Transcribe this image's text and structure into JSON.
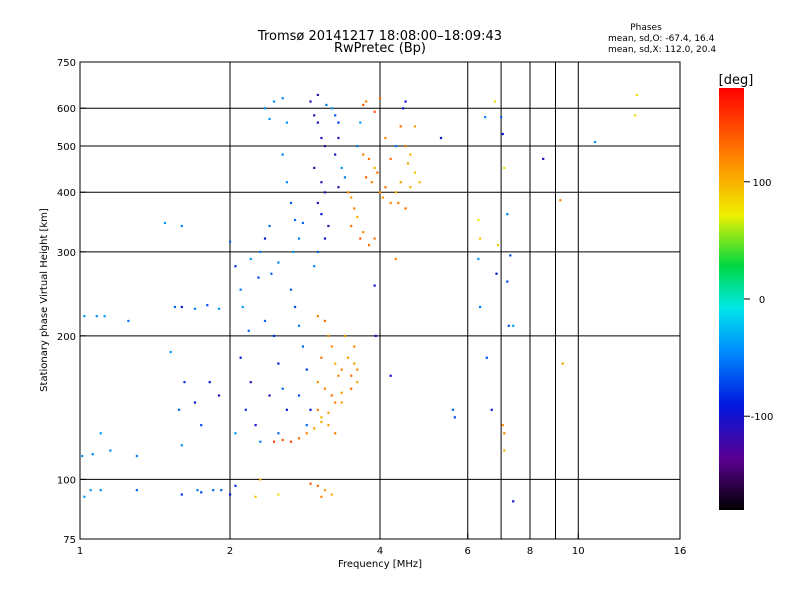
{
  "chart_data": {
    "type": "scatter",
    "title": "Tromsø 20141217 18:08:00–18:09:43",
    "subtitle": "RwPretec (Bp)",
    "xlabel": "Frequency [MHz]",
    "ylabel": "Stationary phase Virtual Height [km]",
    "x_scale": "log",
    "y_scale": "log",
    "xlim": [
      1,
      16
    ],
    "ylim": [
      75,
      750
    ],
    "x_ticks": [
      "1",
      "2",
      "4",
      "6",
      "8",
      "10",
      "16"
    ],
    "y_ticks": [
      "75",
      "100",
      "200",
      "300",
      "400",
      "500",
      "600",
      "750"
    ],
    "x_gridlines": [
      2,
      4,
      6,
      7,
      8,
      9,
      10
    ],
    "y_gridlines": [
      100,
      200,
      300,
      400,
      500,
      600
    ],
    "colorbar": {
      "label": "[deg]",
      "ticks": [
        "100",
        "0",
        "-100"
      ],
      "range": [
        -180,
        180
      ]
    },
    "info": {
      "heading": "Phases",
      "line_o": "mean, sd,O: -67.4, 16.4",
      "line_x": "mean, sd,X: 112.0, 20.4"
    },
    "series": [
      {
        "points_freq_height_phase": [
          [
            1.02,
            220,
            -40
          ],
          [
            1.08,
            220,
            -45
          ],
          [
            1.12,
            220,
            -38
          ],
          [
            1.25,
            215,
            -55
          ],
          [
            1.01,
            112,
            -40
          ],
          [
            1.06,
            113,
            -50
          ],
          [
            1.15,
            115,
            -45
          ],
          [
            1.3,
            112,
            -50
          ],
          [
            1.1,
            125,
            -40
          ],
          [
            1.48,
            345,
            -40
          ],
          [
            1.6,
            340,
            -50
          ],
          [
            1.55,
            230,
            -60
          ],
          [
            1.6,
            230,
            -90
          ],
          [
            1.7,
            228,
            -50
          ],
          [
            1.8,
            232,
            -70
          ],
          [
            1.9,
            228,
            -40
          ],
          [
            1.52,
            185,
            -40
          ],
          [
            1.62,
            160,
            -80
          ],
          [
            1.7,
            145,
            -90
          ],
          [
            1.82,
            160,
            -100
          ],
          [
            1.9,
            150,
            -110
          ],
          [
            1.58,
            140,
            -60
          ],
          [
            1.75,
            130,
            -70
          ],
          [
            1.6,
            118,
            -40
          ],
          [
            2.0,
            315,
            -60
          ],
          [
            2.05,
            280,
            -80
          ],
          [
            2.1,
            250,
            -50
          ],
          [
            2.12,
            230,
            -40
          ],
          [
            2.18,
            205,
            -60
          ],
          [
            2.1,
            180,
            -90
          ],
          [
            2.2,
            160,
            -110
          ],
          [
            2.15,
            140,
            -80
          ],
          [
            2.05,
            125,
            -40
          ],
          [
            2.25,
            130,
            -100
          ],
          [
            2.3,
            300,
            -50
          ],
          [
            2.35,
            320,
            -90
          ],
          [
            2.4,
            340,
            -60
          ],
          [
            2.2,
            290,
            -40
          ],
          [
            2.28,
            265,
            -70
          ],
          [
            2.42,
            270,
            -60
          ],
          [
            2.5,
            285,
            -50
          ],
          [
            2.35,
            215,
            -60
          ],
          [
            2.45,
            200,
            -80
          ],
          [
            2.5,
            175,
            -90
          ],
          [
            2.4,
            150,
            -110
          ],
          [
            2.55,
            155,
            -60
          ],
          [
            2.6,
            140,
            -100
          ],
          [
            2.3,
            120,
            -50
          ],
          [
            2.5,
            125,
            -60
          ],
          [
            2.35,
            600,
            -40
          ],
          [
            2.45,
            620,
            -45
          ],
          [
            2.55,
            630,
            -50
          ],
          [
            2.4,
            570,
            -40
          ],
          [
            2.6,
            560,
            -40
          ],
          [
            2.55,
            480,
            -50
          ],
          [
            2.6,
            420,
            -45
          ],
          [
            2.65,
            380,
            -60
          ],
          [
            2.7,
            350,
            -55
          ],
          [
            2.68,
            300,
            -40
          ],
          [
            2.75,
            320,
            -50
          ],
          [
            2.8,
            345,
            -60
          ],
          [
            2.65,
            250,
            -60
          ],
          [
            2.7,
            230,
            -70
          ],
          [
            2.75,
            210,
            -50
          ],
          [
            2.8,
            190,
            -60
          ],
          [
            2.85,
            170,
            -80
          ],
          [
            2.75,
            150,
            -70
          ],
          [
            2.9,
            140,
            -90
          ],
          [
            2.85,
            130,
            -60
          ],
          [
            2.9,
            620,
            -110
          ],
          [
            3.0,
            640,
            -120
          ],
          [
            2.95,
            580,
            -110
          ],
          [
            3.0,
            560,
            -100
          ],
          [
            3.05,
            520,
            -110
          ],
          [
            3.1,
            500,
            -120
          ],
          [
            2.95,
            450,
            -120
          ],
          [
            3.05,
            420,
            -110
          ],
          [
            3.1,
            400,
            -120
          ],
          [
            3.0,
            380,
            -110
          ],
          [
            3.05,
            360,
            -90
          ],
          [
            3.15,
            340,
            -120
          ],
          [
            3.1,
            320,
            -100
          ],
          [
            3.0,
            300,
            -60
          ],
          [
            2.95,
            280,
            -50
          ],
          [
            3.12,
            610,
            -50
          ],
          [
            3.2,
            600,
            -40
          ],
          [
            3.25,
            580,
            -60
          ],
          [
            3.3,
            560,
            -80
          ],
          [
            3.3,
            520,
            -110
          ],
          [
            3.25,
            480,
            -100
          ],
          [
            3.35,
            450,
            -40
          ],
          [
            3.4,
            430,
            -50
          ],
          [
            3.3,
            410,
            -120
          ],
          [
            3.45,
            400,
            120
          ],
          [
            3.5,
            390,
            110
          ],
          [
            3.55,
            370,
            120
          ],
          [
            3.6,
            355,
            100
          ],
          [
            3.5,
            340,
            130
          ],
          [
            3.65,
            320,
            140
          ],
          [
            3.8,
            310,
            130
          ],
          [
            3.9,
            320,
            125
          ],
          [
            3.7,
            330,
            120
          ],
          [
            3.6,
            500,
            -50
          ],
          [
            3.65,
            560,
            -40
          ],
          [
            3.7,
            610,
            140
          ],
          [
            3.75,
            620,
            120
          ],
          [
            3.7,
            480,
            120
          ],
          [
            3.8,
            470,
            130
          ],
          [
            3.75,
            430,
            140
          ],
          [
            3.85,
            420,
            120
          ],
          [
            3.9,
            450,
            100
          ],
          [
            3.95,
            440,
            130
          ],
          [
            4.0,
            400,
            120
          ],
          [
            4.1,
            410,
            130
          ],
          [
            4.05,
            390,
            110
          ],
          [
            4.2,
            380,
            120
          ],
          [
            4.3,
            400,
            100
          ],
          [
            4.4,
            420,
            110
          ],
          [
            4.35,
            380,
            120
          ],
          [
            4.5,
            370,
            130
          ],
          [
            4.6,
            410,
            100
          ],
          [
            4.55,
            460,
            110
          ],
          [
            4.5,
            500,
            120
          ],
          [
            4.4,
            550,
            130
          ],
          [
            4.6,
            480,
            100
          ],
          [
            4.7,
            440,
            90
          ],
          [
            4.8,
            420,
            100
          ],
          [
            4.2,
            470,
            130
          ],
          [
            4.3,
            500,
            -50
          ],
          [
            4.45,
            600,
            -90
          ],
          [
            4.0,
            630,
            130
          ],
          [
            3.9,
            590,
            140
          ],
          [
            4.1,
            520,
            120
          ],
          [
            3.0,
            220,
            120
          ],
          [
            3.1,
            215,
            130
          ],
          [
            3.15,
            200,
            110
          ],
          [
            3.2,
            190,
            120
          ],
          [
            3.05,
            180,
            130
          ],
          [
            3.25,
            175,
            100
          ],
          [
            3.3,
            165,
            120
          ],
          [
            3.0,
            160,
            110
          ],
          [
            3.1,
            155,
            120
          ],
          [
            3.2,
            150,
            130
          ],
          [
            3.35,
            145,
            110
          ],
          [
            3.0,
            140,
            120
          ],
          [
            3.05,
            135,
            100
          ],
          [
            3.15,
            130,
            110
          ],
          [
            3.25,
            125,
            120
          ],
          [
            3.35,
            170,
            120
          ],
          [
            3.45,
            180,
            110
          ],
          [
            3.5,
            165,
            130
          ],
          [
            3.55,
            175,
            110
          ],
          [
            3.6,
            170,
            120
          ],
          [
            3.6,
            160,
            100
          ],
          [
            3.5,
            155,
            130
          ],
          [
            3.55,
            190,
            120
          ],
          [
            3.4,
            200,
            110
          ],
          [
            2.45,
            120,
            150
          ],
          [
            2.55,
            121,
            140
          ],
          [
            2.65,
            120,
            150
          ],
          [
            2.75,
            122,
            130
          ],
          [
            2.85,
            125,
            120
          ],
          [
            2.95,
            128,
            110
          ],
          [
            3.05,
            132,
            100
          ],
          [
            3.15,
            138,
            110
          ],
          [
            3.25,
            145,
            120
          ],
          [
            3.35,
            152,
            110
          ],
          [
            2.3,
            100,
            100
          ],
          [
            2.5,
            93,
            80
          ],
          [
            2.25,
            92,
            90
          ],
          [
            3.0,
            97,
            130
          ],
          [
            3.1,
            95,
            110
          ],
          [
            3.2,
            93,
            100
          ],
          [
            3.05,
            92,
            120
          ],
          [
            2.9,
            98,
            140
          ],
          [
            1.72,
            95,
            -50
          ],
          [
            1.85,
            95,
            -60
          ],
          [
            1.05,
            95,
            -40
          ],
          [
            1.1,
            95,
            -45
          ],
          [
            1.02,
            92,
            -40
          ],
          [
            1.3,
            95,
            -60
          ],
          [
            1.6,
            93,
            -80
          ],
          [
            1.75,
            94,
            -70
          ],
          [
            1.92,
            95,
            -60
          ],
          [
            2.0,
            93,
            -100
          ],
          [
            2.05,
            97,
            -80
          ],
          [
            3.9,
            255,
            -100
          ],
          [
            3.92,
            200,
            -100
          ],
          [
            4.2,
            165,
            -100
          ],
          [
            4.3,
            290,
            120
          ],
          [
            4.5,
            620,
            -100
          ],
          [
            4.7,
            550,
            110
          ],
          [
            5.3,
            520,
            -100
          ],
          [
            5.6,
            140,
            -60
          ],
          [
            5.65,
            135,
            -70
          ],
          [
            6.3,
            350,
            70
          ],
          [
            6.35,
            320,
            90
          ],
          [
            6.3,
            290,
            -40
          ],
          [
            6.35,
            230,
            -50
          ],
          [
            6.5,
            575,
            -50
          ],
          [
            6.55,
            180,
            -70
          ],
          [
            6.7,
            140,
            -100
          ],
          [
            6.8,
            620,
            80
          ],
          [
            6.9,
            310,
            90
          ],
          [
            6.85,
            270,
            -90
          ],
          [
            7.0,
            575,
            -60
          ],
          [
            7.05,
            530,
            -90
          ],
          [
            7.1,
            450,
            80
          ],
          [
            7.2,
            360,
            -50
          ],
          [
            7.3,
            295,
            -70
          ],
          [
            7.2,
            260,
            -70
          ],
          [
            7.25,
            210,
            -70
          ],
          [
            7.05,
            130,
            120
          ],
          [
            7.1,
            125,
            120
          ],
          [
            7.1,
            115,
            100
          ],
          [
            7.4,
            210,
            -40
          ],
          [
            7.4,
            90,
            -100
          ],
          [
            8.5,
            470,
            -110
          ],
          [
            9.2,
            385,
            120
          ],
          [
            9.3,
            175,
            110
          ],
          [
            10.8,
            510,
            -40
          ],
          [
            13.0,
            580,
            80
          ],
          [
            13.1,
            640,
            80
          ]
        ]
      }
    ]
  }
}
